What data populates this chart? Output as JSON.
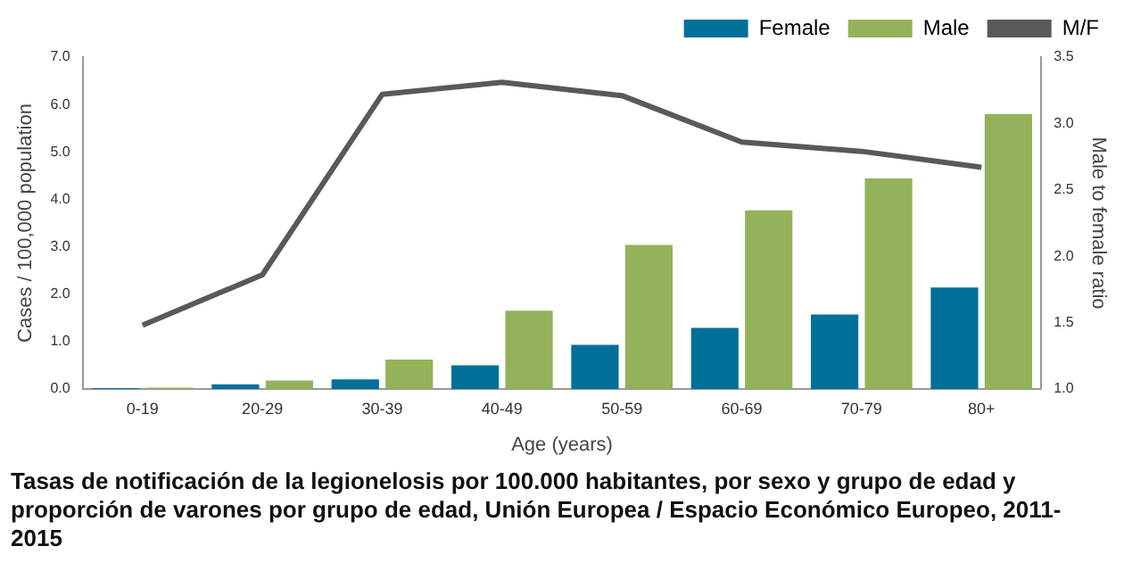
{
  "chart_data": {
    "type": "bar",
    "title": "Tasas de notificación de la legionelosis por 100.000 habitantes, por sexo y grupo de edad y proporción de varones por grupo de edad, Unión Europea / Espacio Económico Europeo, 2011-2015",
    "xlabel": "Age (years)",
    "ylabel": "Cases / 100,000 population",
    "y2label": "Male to female ratio",
    "categories": [
      "0-19",
      "20-29",
      "30-39",
      "40-49",
      "50-59",
      "60-69",
      "70-79",
      "80+"
    ],
    "series": [
      {
        "name": "Female",
        "color": "#00709a",
        "values": [
          0.02,
          0.1,
          0.2,
          0.5,
          0.93,
          1.29,
          1.57,
          2.14
        ]
      },
      {
        "name": "Male",
        "color": "#93b25a",
        "values": [
          0.03,
          0.18,
          0.62,
          1.65,
          3.04,
          3.77,
          4.44,
          5.8
        ]
      },
      {
        "name": "M/F",
        "type": "line",
        "axis": "y2",
        "color": "#58595b",
        "values": [
          1.48,
          1.86,
          3.22,
          3.31,
          3.21,
          2.86,
          2.79,
          2.67
        ]
      }
    ],
    "ylim": [
      0,
      7
    ],
    "yticks": [
      {
        "value": 0,
        "label": "0.0"
      },
      {
        "value": 1,
        "label": "1.0"
      },
      {
        "value": 2,
        "label": "2.0"
      },
      {
        "value": 3,
        "label": "3.0"
      },
      {
        "value": 4,
        "label": "4.0"
      },
      {
        "value": 5,
        "label": "5.0"
      },
      {
        "value": 6,
        "label": "6.0"
      },
      {
        "value": 7,
        "label": "7.0"
      }
    ],
    "y2lim": [
      1,
      3.5
    ],
    "y2ticks": [
      {
        "value": 1,
        "label": "1.0"
      },
      {
        "value": 1.5,
        "label": "1.5"
      },
      {
        "value": 2,
        "label": "2.0"
      },
      {
        "value": 2.5,
        "label": "2.5"
      },
      {
        "value": 3,
        "label": "3.0"
      },
      {
        "value": 3.5,
        "label": "3.5"
      }
    ],
    "grid": false,
    "legend": "top right",
    "marker": "none",
    "line_style": "solid"
  }
}
